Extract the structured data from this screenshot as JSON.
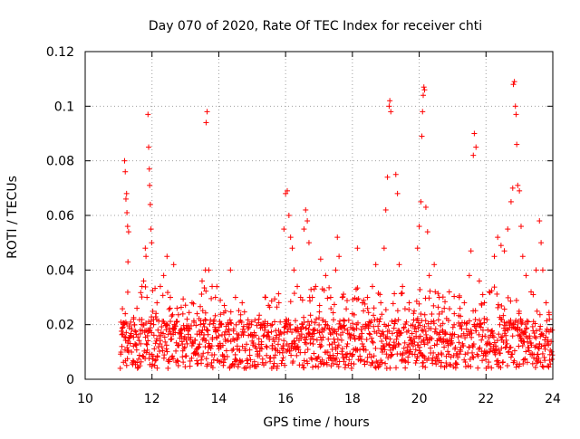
{
  "chart_data": {
    "type": "scatter",
    "title": "Day 070 of 2020, Rate Of TEC Index for receiver chti",
    "xlabel": "GPS time / hours",
    "ylabel": "ROTI / TECUs",
    "xlim": [
      10,
      24
    ],
    "ylim": [
      0,
      0.12
    ],
    "xticks": [
      10,
      12,
      14,
      16,
      18,
      20,
      22,
      24
    ],
    "yticks": [
      0,
      0.02,
      0.04,
      0.06,
      0.08,
      0.1,
      0.12
    ],
    "xtick_labels": [
      "10",
      "12",
      "14",
      "16",
      "18",
      "20",
      "22",
      "24"
    ],
    "ytick_labels": [
      "0",
      "0.02",
      "0.04",
      "0.06",
      "0.08",
      "0.1",
      "0.12"
    ],
    "grid": true,
    "marker": "+",
    "color": "#ff0000",
    "series": [
      {
        "name": "ROTI",
        "points": [
          [
            11.1,
            0.012
          ],
          [
            11.15,
            0.02
          ],
          [
            11.2,
            0.024
          ],
          [
            11.22,
            0.066
          ],
          [
            11.24,
            0.068
          ],
          [
            11.18,
            0.08
          ],
          [
            11.2,
            0.076
          ],
          [
            11.25,
            0.061
          ],
          [
            11.27,
            0.056
          ],
          [
            11.3,
            0.054
          ],
          [
            11.28,
            0.043
          ],
          [
            11.35,
            0.016
          ],
          [
            11.45,
            0.022
          ],
          [
            11.55,
            0.026
          ],
          [
            11.65,
            0.018
          ],
          [
            11.7,
            0.034
          ],
          [
            11.75,
            0.036
          ],
          [
            11.8,
            0.048
          ],
          [
            11.82,
            0.045
          ],
          [
            11.85,
            0.03
          ],
          [
            11.88,
            0.097
          ],
          [
            11.9,
            0.085
          ],
          [
            11.92,
            0.077
          ],
          [
            11.93,
            0.071
          ],
          [
            11.95,
            0.064
          ],
          [
            11.97,
            0.055
          ],
          [
            11.99,
            0.05
          ],
          [
            12.05,
            0.02
          ],
          [
            12.15,
            0.028
          ],
          [
            12.25,
            0.034
          ],
          [
            12.35,
            0.038
          ],
          [
            12.45,
            0.045
          ],
          [
            12.55,
            0.03
          ],
          [
            12.65,
            0.042
          ],
          [
            12.75,
            0.026
          ],
          [
            12.9,
            0.018
          ],
          [
            13.05,
            0.022
          ],
          [
            13.2,
            0.028
          ],
          [
            13.35,
            0.024
          ],
          [
            13.5,
            0.036
          ],
          [
            13.6,
            0.04
          ],
          [
            13.62,
            0.094
          ],
          [
            13.65,
            0.098
          ],
          [
            13.7,
            0.04
          ],
          [
            13.8,
            0.034
          ],
          [
            13.9,
            0.03
          ],
          [
            14.05,
            0.02
          ],
          [
            14.2,
            0.025
          ],
          [
            14.35,
            0.04
          ],
          [
            14.5,
            0.03
          ],
          [
            14.7,
            0.028
          ],
          [
            14.85,
            0.02
          ],
          [
            15.0,
            0.016
          ],
          [
            15.2,
            0.022
          ],
          [
            15.4,
            0.03
          ],
          [
            15.6,
            0.02
          ],
          [
            15.8,
            0.028
          ],
          [
            15.95,
            0.055
          ],
          [
            16.0,
            0.068
          ],
          [
            16.05,
            0.069
          ],
          [
            16.1,
            0.06
          ],
          [
            16.15,
            0.052
          ],
          [
            16.2,
            0.048
          ],
          [
            16.25,
            0.04
          ],
          [
            16.35,
            0.034
          ],
          [
            16.45,
            0.03
          ],
          [
            16.55,
            0.055
          ],
          [
            16.6,
            0.062
          ],
          [
            16.65,
            0.058
          ],
          [
            16.7,
            0.05
          ],
          [
            16.8,
            0.03
          ],
          [
            16.9,
            0.034
          ],
          [
            17.05,
            0.044
          ],
          [
            17.2,
            0.038
          ],
          [
            17.35,
            0.03
          ],
          [
            17.5,
            0.04
          ],
          [
            17.55,
            0.052
          ],
          [
            17.6,
            0.045
          ],
          [
            17.7,
            0.03
          ],
          [
            17.85,
            0.018
          ],
          [
            18.0,
            0.024
          ],
          [
            18.15,
            0.048
          ],
          [
            18.3,
            0.028
          ],
          [
            18.45,
            0.03
          ],
          [
            18.6,
            0.034
          ],
          [
            18.7,
            0.042
          ],
          [
            18.85,
            0.028
          ],
          [
            18.95,
            0.048
          ],
          [
            19.0,
            0.062
          ],
          [
            19.05,
            0.074
          ],
          [
            19.1,
            0.1
          ],
          [
            19.12,
            0.102
          ],
          [
            19.15,
            0.098
          ],
          [
            19.3,
            0.075
          ],
          [
            19.35,
            0.068
          ],
          [
            19.4,
            0.042
          ],
          [
            19.5,
            0.034
          ],
          [
            19.7,
            0.028
          ],
          [
            19.85,
            0.025
          ],
          [
            19.95,
            0.048
          ],
          [
            20.0,
            0.056
          ],
          [
            20.05,
            0.065
          ],
          [
            20.08,
            0.089
          ],
          [
            20.1,
            0.098
          ],
          [
            20.12,
            0.104
          ],
          [
            20.14,
            0.107
          ],
          [
            20.16,
            0.106
          ],
          [
            20.2,
            0.063
          ],
          [
            20.25,
            0.054
          ],
          [
            20.3,
            0.038
          ],
          [
            20.45,
            0.042
          ],
          [
            20.6,
            0.03
          ],
          [
            20.75,
            0.026
          ],
          [
            20.9,
            0.032
          ],
          [
            21.05,
            0.024
          ],
          [
            21.2,
            0.03
          ],
          [
            21.35,
            0.028
          ],
          [
            21.5,
            0.038
          ],
          [
            21.55,
            0.047
          ],
          [
            21.62,
            0.082
          ],
          [
            21.65,
            0.09
          ],
          [
            21.7,
            0.085
          ],
          [
            21.8,
            0.036
          ],
          [
            21.95,
            0.028
          ],
          [
            22.1,
            0.032
          ],
          [
            22.25,
            0.045
          ],
          [
            22.35,
            0.052
          ],
          [
            22.45,
            0.049
          ],
          [
            22.55,
            0.047
          ],
          [
            22.65,
            0.055
          ],
          [
            22.75,
            0.065
          ],
          [
            22.8,
            0.07
          ],
          [
            22.82,
            0.108
          ],
          [
            22.85,
            0.109
          ],
          [
            22.88,
            0.1
          ],
          [
            22.9,
            0.097
          ],
          [
            22.92,
            0.086
          ],
          [
            22.95,
            0.071
          ],
          [
            23.0,
            0.069
          ],
          [
            23.05,
            0.056
          ],
          [
            23.1,
            0.045
          ],
          [
            23.2,
            0.038
          ],
          [
            23.35,
            0.032
          ],
          [
            23.5,
            0.04
          ],
          [
            23.6,
            0.058
          ],
          [
            23.65,
            0.05
          ],
          [
            23.7,
            0.04
          ],
          [
            23.8,
            0.028
          ],
          [
            23.9,
            0.022
          ],
          [
            23.98,
            0.018
          ]
        ]
      }
    ]
  }
}
